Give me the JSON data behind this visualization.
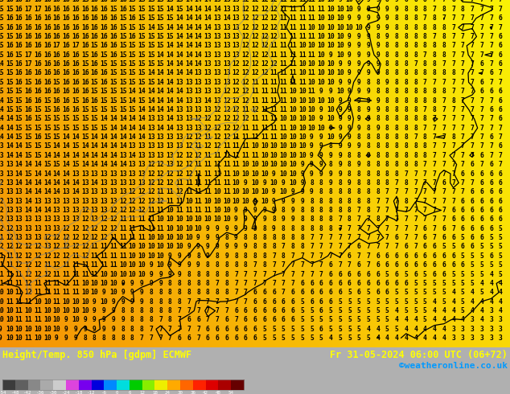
{
  "title_left": "Height/Temp. 850 hPa [gdpm] ECMWF",
  "title_right": "Fr 31-05-2024 06:00 UTC (06+72)",
  "credit": "©weatheronline.co.uk",
  "colorbar_bounds": [
    -54,
    -48,
    -42,
    -36,
    -30,
    -24,
    -18,
    -12,
    -6,
    0,
    6,
    12,
    18,
    24,
    30,
    36,
    42,
    48,
    54
  ],
  "colorbar_colors": [
    "#3c3c3c",
    "#606060",
    "#888888",
    "#aaaaaa",
    "#cccccc",
    "#dd44dd",
    "#7700ee",
    "#0000dd",
    "#0088ff",
    "#00dddd",
    "#00cc00",
    "#88ee00",
    "#eeee00",
    "#ffaa00",
    "#ff6600",
    "#ff2200",
    "#dd0000",
    "#aa0000",
    "#660000"
  ],
  "bg_color_orange": "#f5a800",
  "bg_color_yellow": "#f5d800",
  "green_area_color": "#44bb00",
  "fig_bg": "#b0b0b0",
  "bottom_bar_bg": "#000000",
  "text_color_main": "#ffff00",
  "text_color_credit": "#0099ff",
  "num_rows": 38,
  "num_cols": 54,
  "font_size": 5.8
}
